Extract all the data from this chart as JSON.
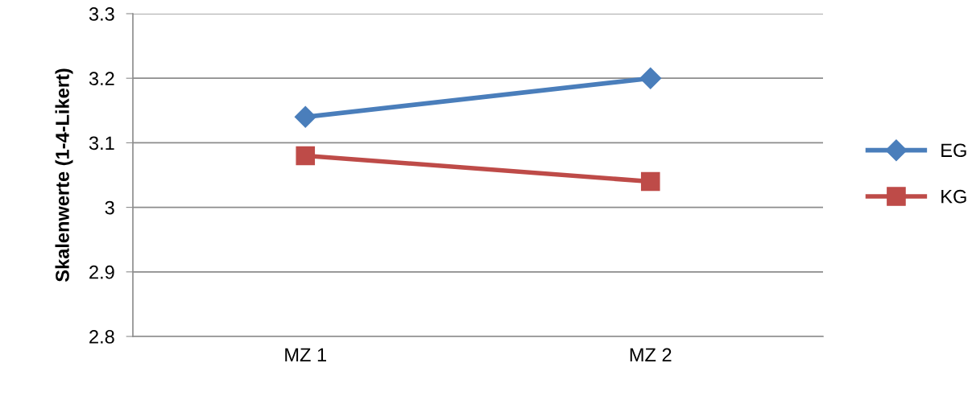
{
  "chart_data": {
    "type": "line",
    "ylabel": "Skalenwerte (1-4-Likert)",
    "categories": [
      "MZ 1",
      "MZ 2"
    ],
    "series": [
      {
        "name": "EG",
        "color": "#4a7ebb",
        "values": [
          3.14,
          3.2
        ],
        "marker": "diamond"
      },
      {
        "name": "KG",
        "color": "#be4b48",
        "values": [
          3.08,
          3.04
        ],
        "marker": "square"
      }
    ],
    "ylim": [
      2.8,
      3.3
    ],
    "yticks": [
      2.8,
      2.9,
      3.0,
      3.1,
      3.2,
      3.3
    ],
    "grid": "y",
    "legend": "right",
    "line_style": "solid"
  }
}
